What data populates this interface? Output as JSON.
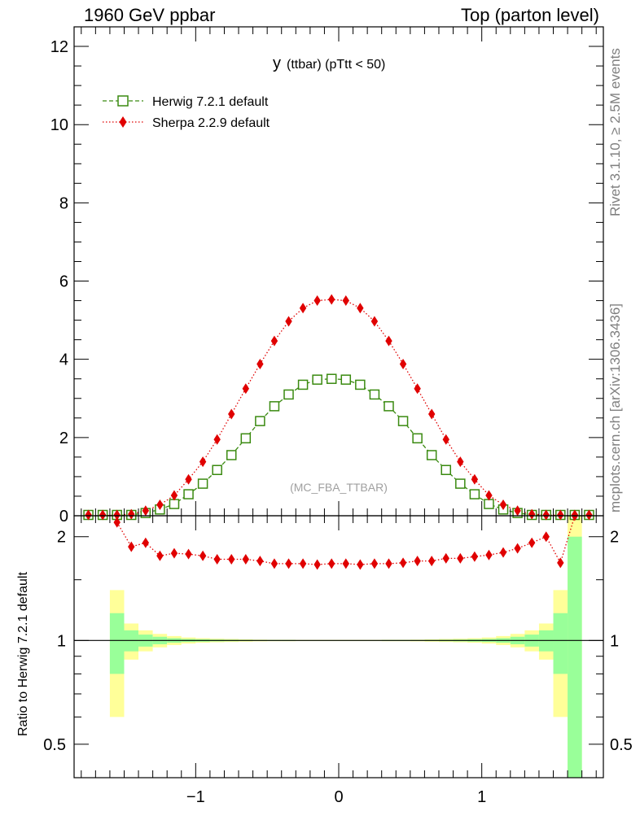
{
  "header": {
    "left": "1960 GeV ppbar",
    "right": "Top (parton level)"
  },
  "side_text": {
    "upper": "Rivet 3.1.10, ≥ 2.5M events",
    "lower": "mcplots.cern.ch [arXiv:1306.3436]"
  },
  "plot": {
    "title_main": "y",
    "title_sub": "(ttbar)  (pTtt < 50)",
    "watermark": "(MC_FBA_TTBAR)"
  },
  "ratio_ylabel": "Ratio to Herwig 7.2.1 default",
  "colors": {
    "herwig": "#3a8a10",
    "sherpa": "#e00000",
    "band_inner": "#99ff99",
    "band_outer": "#ffff99"
  },
  "chart_data": [
    {
      "type": "line",
      "panel": "main",
      "xlim": [
        -1.85,
        1.85
      ],
      "ylim": [
        0,
        12.5
      ],
      "yticks": [
        0,
        2,
        4,
        6,
        8,
        10,
        12
      ],
      "ytick_labels": [
        "0",
        "2",
        "4",
        "6",
        "8",
        "10",
        "12"
      ],
      "legend_position": "top-left",
      "x": [
        -1.75,
        -1.65,
        -1.55,
        -1.45,
        -1.35,
        -1.25,
        -1.15,
        -1.05,
        -0.95,
        -0.85,
        -0.75,
        -0.65,
        -0.55,
        -0.45,
        -0.35,
        -0.25,
        -0.15,
        -0.05,
        0.05,
        0.15,
        0.25,
        0.35,
        0.45,
        0.55,
        0.65,
        0.75,
        0.85,
        0.95,
        1.05,
        1.15,
        1.25,
        1.35,
        1.45,
        1.55,
        1.65,
        1.75
      ],
      "series": [
        {
          "name": "Herwig 7.2.1 default",
          "color": "#3a8a10",
          "marker": "open-square",
          "line": "dashed",
          "values": [
            0.0,
            0.0,
            0.01,
            0.02,
            0.07,
            0.16,
            0.3,
            0.55,
            0.82,
            1.17,
            1.55,
            1.98,
            2.42,
            2.8,
            3.1,
            3.35,
            3.48,
            3.5,
            3.48,
            3.35,
            3.1,
            2.8,
            2.42,
            1.98,
            1.55,
            1.17,
            0.82,
            0.55,
            0.3,
            0.16,
            0.07,
            0.02,
            0.01,
            0.0,
            0.0,
            0.0
          ]
        },
        {
          "name": "Sherpa 2.2.9 default",
          "color": "#e00000",
          "marker": "filled-diamond",
          "line": "dotted",
          "values": [
            0.0,
            0.0,
            0.02,
            0.04,
            0.13,
            0.28,
            0.52,
            0.93,
            1.38,
            1.95,
            2.6,
            3.25,
            3.88,
            4.47,
            4.97,
            5.31,
            5.5,
            5.53,
            5.5,
            5.31,
            4.97,
            4.47,
            3.88,
            3.25,
            2.6,
            1.95,
            1.38,
            0.93,
            0.52,
            0.28,
            0.13,
            0.04,
            0.02,
            0.01,
            0.0,
            0.0
          ]
        }
      ]
    },
    {
      "type": "line",
      "panel": "ratio",
      "xlim": [
        -1.85,
        1.85
      ],
      "ylim": [
        0.4,
        2.3
      ],
      "yscale": "log",
      "xticks": [
        -1,
        0,
        1
      ],
      "xtick_labels": [
        "−1",
        "0",
        "1"
      ],
      "yticks": [
        0.5,
        1,
        2
      ],
      "ytick_labels": [
        "0.5",
        "1",
        "2"
      ],
      "reference_line": 1,
      "x": [
        -1.55,
        -1.45,
        -1.35,
        -1.25,
        -1.15,
        -1.05,
        -0.95,
        -0.85,
        -0.75,
        -0.65,
        -0.55,
        -0.45,
        -0.35,
        -0.25,
        -0.15,
        -0.05,
        0.05,
        0.15,
        0.25,
        0.35,
        0.45,
        0.55,
        0.65,
        0.75,
        0.85,
        0.95,
        1.05,
        1.15,
        1.25,
        1.35,
        1.45,
        1.55,
        1.65
      ],
      "series": [
        {
          "name": "Sherpa 2.2.9 default",
          "color": "#e00000",
          "values": [
            2.2,
            1.87,
            1.92,
            1.76,
            1.79,
            1.78,
            1.76,
            1.72,
            1.72,
            1.72,
            1.7,
            1.67,
            1.67,
            1.67,
            1.66,
            1.67,
            1.67,
            1.66,
            1.67,
            1.67,
            1.68,
            1.7,
            1.7,
            1.73,
            1.73,
            1.75,
            1.77,
            1.8,
            1.85,
            1.92,
            2.0,
            1.68,
            2.3
          ]
        }
      ],
      "bands": {
        "x_edges": [
          -1.6,
          -1.5,
          -1.4,
          -1.3,
          -1.2,
          -1.1,
          -1.0,
          -0.9,
          -0.8,
          -0.7,
          -0.6,
          -0.5,
          -0.4,
          -0.3,
          -0.2,
          -0.1,
          0.0,
          0.1,
          0.2,
          0.3,
          0.4,
          0.5,
          0.6,
          0.7,
          0.8,
          0.9,
          1.0,
          1.1,
          1.2,
          1.3,
          1.4,
          1.5,
          1.6,
          1.7
        ],
        "inner_halfwidth": [
          0.2,
          0.07,
          0.04,
          0.025,
          0.015,
          0.01,
          0.008,
          0.006,
          0.005,
          0.004,
          0.003,
          0.003,
          0.003,
          0.002,
          0.002,
          0.002,
          0.002,
          0.002,
          0.002,
          0.003,
          0.003,
          0.003,
          0.004,
          0.005,
          0.006,
          0.008,
          0.01,
          0.015,
          0.025,
          0.04,
          0.07,
          0.2,
          1.0
        ],
        "outer_halfwidth": [
          0.4,
          0.12,
          0.07,
          0.045,
          0.03,
          0.02,
          0.015,
          0.012,
          0.01,
          0.008,
          0.006,
          0.005,
          0.005,
          0.004,
          0.004,
          0.004,
          0.004,
          0.004,
          0.004,
          0.005,
          0.005,
          0.006,
          0.008,
          0.01,
          0.012,
          0.015,
          0.02,
          0.03,
          0.045,
          0.07,
          0.12,
          0.4,
          1.3
        ]
      }
    }
  ]
}
